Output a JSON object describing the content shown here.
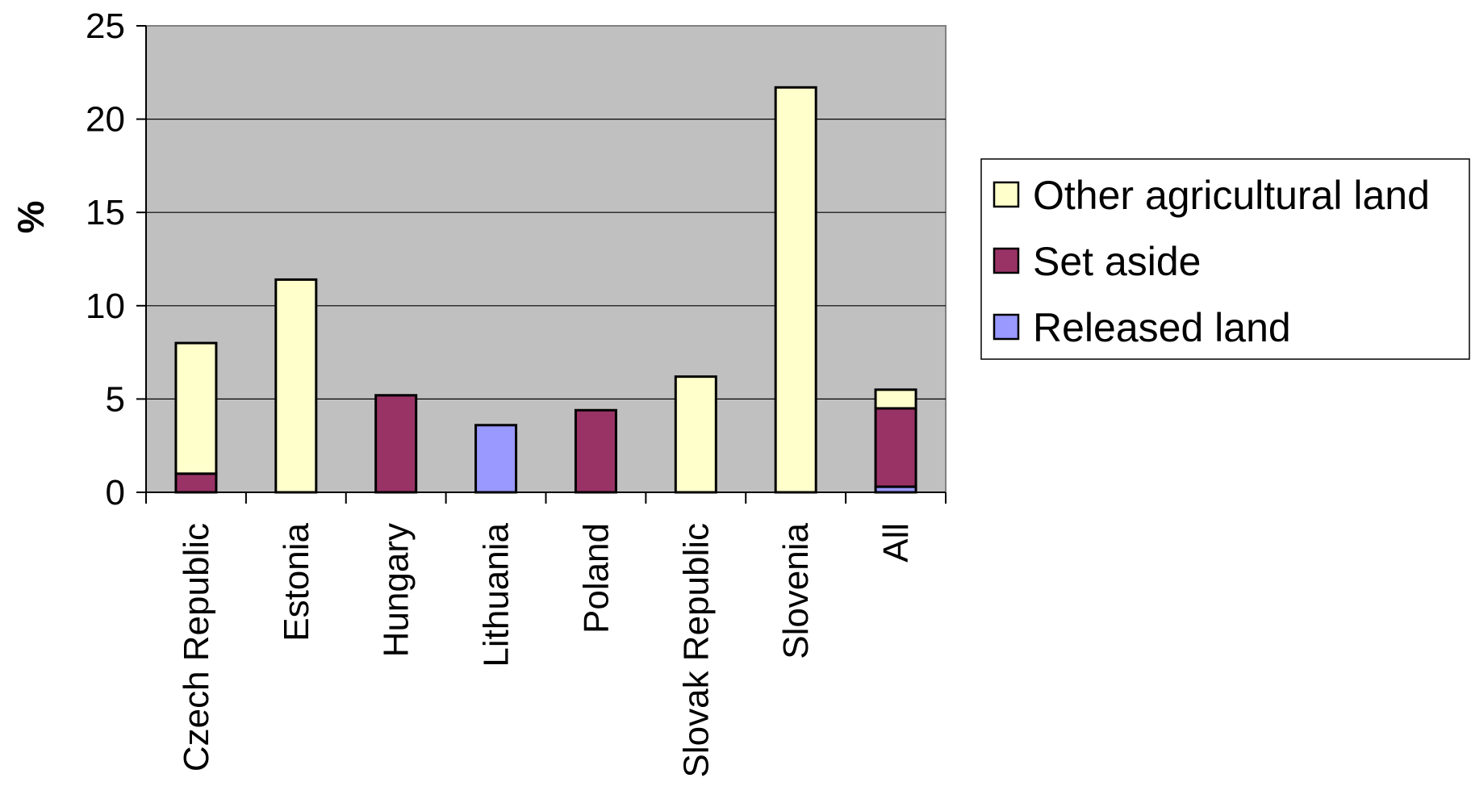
{
  "chart_data": {
    "type": "bar",
    "stacked": true,
    "ylabel": "%",
    "xlabel": "",
    "ylim": [
      0,
      25
    ],
    "yticks": [
      0,
      5,
      10,
      15,
      20,
      25
    ],
    "grid": true,
    "legend_position": "right",
    "categories": [
      "Czech Republic",
      "Estonia",
      "Hungary",
      "Lithuania",
      "Poland",
      "Slovak Republic",
      "Slovenia",
      "All"
    ],
    "series": [
      {
        "name": "Released land",
        "color": "#9999ff",
        "values": [
          0,
          0,
          0,
          3.6,
          0,
          0,
          0,
          0.3
        ]
      },
      {
        "name": "Set aside",
        "color": "#993366",
        "values": [
          1.0,
          0,
          5.2,
          0,
          4.4,
          0,
          0,
          4.2
        ]
      },
      {
        "name": "Other agricultural land",
        "color": "#ffffcc",
        "values": [
          7.0,
          11.4,
          0,
          0,
          0,
          6.2,
          21.7,
          1.0
        ]
      }
    ],
    "legend_order": [
      "Other agricultural land",
      "Set aside",
      "Released land"
    ],
    "plot_background": "#c0c0c0"
  }
}
